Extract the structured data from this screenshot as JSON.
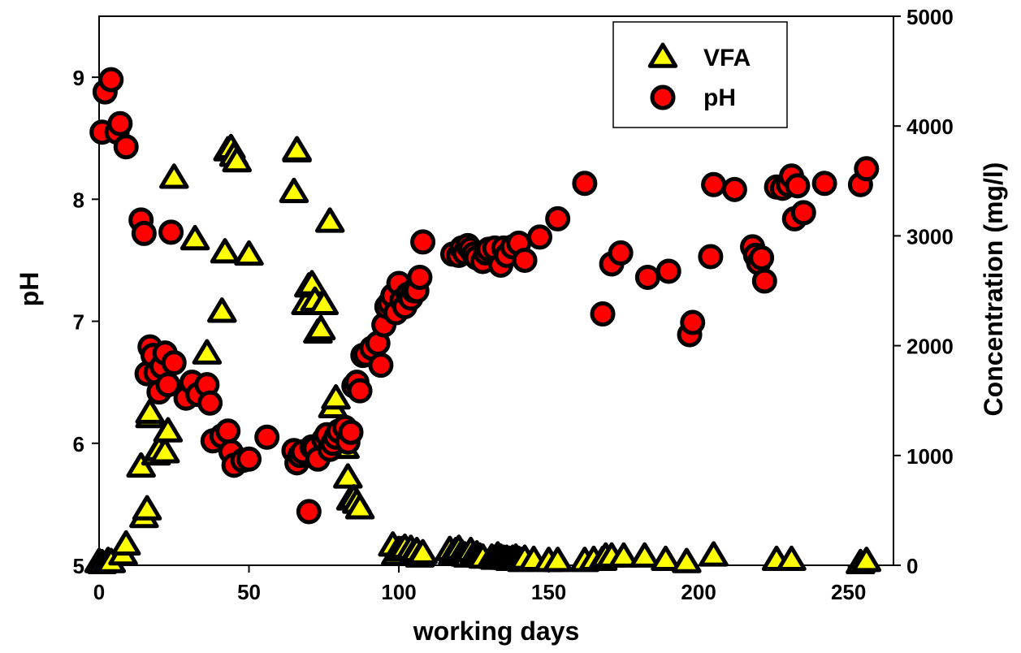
{
  "chart_data": {
    "type": "scatter",
    "xlabel": "working days",
    "ylabel_left": "pH",
    "ylabel_right": "Concentration (mg/l)",
    "xlim": [
      0,
      265
    ],
    "xticks": [
      0,
      50,
      100,
      150,
      200,
      250
    ],
    "ylim_left": [
      5,
      9.5
    ],
    "yticks_left": [
      5,
      6,
      7,
      8,
      9
    ],
    "ylim_right": [
      0,
      5000
    ],
    "yticks_right": [
      0,
      1000,
      2000,
      3000,
      4000,
      5000
    ],
    "grid": false,
    "legend_position": "top-right",
    "colors": {
      "vfa_fill": "#ffff00",
      "ph_fill": "#ff0000",
      "outline": "#000000"
    },
    "series": [
      {
        "name": "VFA",
        "axis": "right",
        "marker": "triangle",
        "x": [
          0,
          1,
          3,
          4,
          8,
          9,
          14,
          15,
          16,
          17,
          17,
          19,
          20,
          22,
          23,
          25,
          32,
          36,
          41,
          42,
          43,
          44,
          45,
          46,
          50,
          65,
          66,
          66,
          69,
          70,
          71,
          72,
          73,
          74,
          75,
          77,
          78,
          79,
          82,
          83,
          84,
          85,
          86,
          87,
          98,
          99,
          100,
          101,
          102,
          104,
          105,
          106,
          107,
          108,
          117,
          118,
          119,
          120,
          121,
          122,
          123,
          124,
          125,
          126,
          127,
          128,
          131,
          132,
          133,
          134,
          135,
          136,
          137,
          138,
          139,
          140,
          141,
          142,
          145,
          150,
          153,
          162,
          165,
          168,
          169,
          171,
          175,
          182,
          189,
          196,
          205,
          226,
          231,
          254,
          256
        ],
        "y": [
          30,
          20,
          40,
          30,
          100,
          190,
          900,
          440,
          510,
          1350,
          1390,
          1010,
          1050,
          1030,
          1220,
          3530,
          2970,
          1930,
          2310,
          2850,
          3780,
          3800,
          3730,
          3680,
          2830,
          3400,
          3770,
          3780,
          2380,
          2540,
          2560,
          2410,
          2120,
          2150,
          2380,
          3130,
          1440,
          1520,
          1070,
          800,
          600,
          610,
          570,
          520,
          180,
          100,
          140,
          140,
          160,
          150,
          110,
          130,
          80,
          110,
          140,
          100,
          130,
          150,
          110,
          90,
          80,
          130,
          90,
          100,
          80,
          70,
          70,
          60,
          90,
          70,
          60,
          60,
          50,
          60,
          70,
          50,
          40,
          60,
          50,
          40,
          40,
          40,
          50,
          50,
          80,
          80,
          80,
          80,
          50,
          30,
          90,
          50,
          50,
          20,
          40
        ]
      },
      {
        "name": "pH",
        "axis": "left",
        "marker": "circle",
        "x": [
          1,
          2,
          4,
          6,
          7,
          9,
          14,
          15,
          16,
          17,
          18,
          19,
          20,
          21,
          22,
          23,
          24,
          25,
          29,
          31,
          33,
          36,
          37,
          38,
          41,
          43,
          44,
          45,
          48,
          50,
          56,
          65,
          66,
          67,
          68,
          70,
          71,
          72,
          73,
          75,
          76,
          77,
          78,
          79,
          80,
          82,
          83,
          84,
          85,
          86,
          87,
          88,
          89,
          91,
          93,
          94,
          95,
          96,
          97,
          98,
          99,
          100,
          101,
          102,
          103,
          104,
          105,
          106,
          107,
          108,
          118,
          120,
          121,
          122,
          123,
          124,
          125,
          126,
          128,
          129,
          130,
          132,
          134,
          135,
          136,
          138,
          140,
          142,
          147,
          153,
          162,
          168,
          171,
          174,
          183,
          190,
          197,
          198,
          204,
          205,
          212,
          218,
          219,
          220,
          221,
          222,
          226,
          228,
          230,
          231,
          232,
          233,
          235,
          242,
          254,
          256
        ],
        "y": [
          8.55,
          8.88,
          8.98,
          8.55,
          8.62,
          8.43,
          7.83,
          7.72,
          6.57,
          6.79,
          6.72,
          6.58,
          6.42,
          6.63,
          6.74,
          6.48,
          7.73,
          6.66,
          6.37,
          6.5,
          6.4,
          6.48,
          6.33,
          6.02,
          6.06,
          6.1,
          5.93,
          5.82,
          5.86,
          5.87,
          6.05,
          5.94,
          5.84,
          5.9,
          5.93,
          5.44,
          5.97,
          5.96,
          5.87,
          6.03,
          6.07,
          5.95,
          6.0,
          6.05,
          6.1,
          6.13,
          6.01,
          6.09,
          6.47,
          6.5,
          6.43,
          6.72,
          6.73,
          6.78,
          6.82,
          6.64,
          6.97,
          7.12,
          7.15,
          7.21,
          7.07,
          7.31,
          7.17,
          7.12,
          7.22,
          7.19,
          7.25,
          7.25,
          7.36,
          7.65,
          7.55,
          7.54,
          7.6,
          7.56,
          7.62,
          7.59,
          7.55,
          7.52,
          7.49,
          7.56,
          7.59,
          7.6,
          7.46,
          7.6,
          7.54,
          7.61,
          7.64,
          7.5,
          7.69,
          7.84,
          8.13,
          7.06,
          7.47,
          7.56,
          7.36,
          7.41,
          6.89,
          6.99,
          7.53,
          8.12,
          8.08,
          7.61,
          7.54,
          7.48,
          7.52,
          7.33,
          8.1,
          8.09,
          8.12,
          8.19,
          7.84,
          8.11,
          7.89,
          8.13,
          8.12,
          8.25
        ]
      }
    ]
  }
}
